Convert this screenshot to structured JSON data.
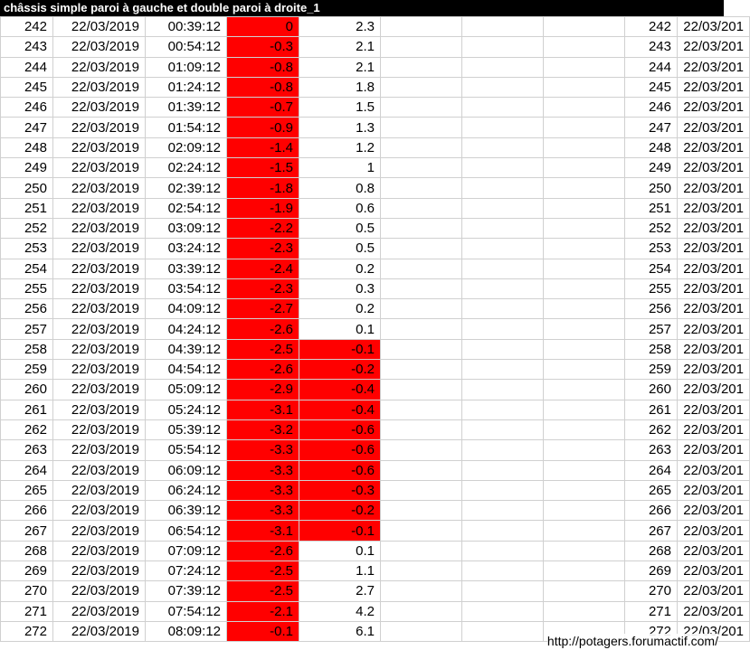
{
  "title": "châssis simple paroi à gauche et double paroi à droite_1",
  "footer_url": "http://potagers.forumactif.com/",
  "colors": {
    "highlight": "#ff0000",
    "border": "#d0d0d0",
    "title_bg": "#000000",
    "title_fg": "#ffffff"
  },
  "negative_threshold": 0,
  "rows": [
    {
      "idx": 242,
      "date": "22/03/2019",
      "time": "00:39:12",
      "v1": 0,
      "v2": 2.3,
      "idx2": 242,
      "date2": "22/03/201"
    },
    {
      "idx": 243,
      "date": "22/03/2019",
      "time": "00:54:12",
      "v1": -0.3,
      "v2": 2.1,
      "idx2": 243,
      "date2": "22/03/201"
    },
    {
      "idx": 244,
      "date": "22/03/2019",
      "time": "01:09:12",
      "v1": -0.8,
      "v2": 2.1,
      "idx2": 244,
      "date2": "22/03/201"
    },
    {
      "idx": 245,
      "date": "22/03/2019",
      "time": "01:24:12",
      "v1": -0.8,
      "v2": 1.8,
      "idx2": 245,
      "date2": "22/03/201"
    },
    {
      "idx": 246,
      "date": "22/03/2019",
      "time": "01:39:12",
      "v1": -0.7,
      "v2": 1.5,
      "idx2": 246,
      "date2": "22/03/201"
    },
    {
      "idx": 247,
      "date": "22/03/2019",
      "time": "01:54:12",
      "v1": -0.9,
      "v2": 1.3,
      "idx2": 247,
      "date2": "22/03/201"
    },
    {
      "idx": 248,
      "date": "22/03/2019",
      "time": "02:09:12",
      "v1": -1.4,
      "v2": 1.2,
      "idx2": 248,
      "date2": "22/03/201"
    },
    {
      "idx": 249,
      "date": "22/03/2019",
      "time": "02:24:12",
      "v1": -1.5,
      "v2": 1,
      "idx2": 249,
      "date2": "22/03/201"
    },
    {
      "idx": 250,
      "date": "22/03/2019",
      "time": "02:39:12",
      "v1": -1.8,
      "v2": 0.8,
      "idx2": 250,
      "date2": "22/03/201"
    },
    {
      "idx": 251,
      "date": "22/03/2019",
      "time": "02:54:12",
      "v1": -1.9,
      "v2": 0.6,
      "idx2": 251,
      "date2": "22/03/201"
    },
    {
      "idx": 252,
      "date": "22/03/2019",
      "time": "03:09:12",
      "v1": -2.2,
      "v2": 0.5,
      "idx2": 252,
      "date2": "22/03/201"
    },
    {
      "idx": 253,
      "date": "22/03/2019",
      "time": "03:24:12",
      "v1": -2.3,
      "v2": 0.5,
      "idx2": 253,
      "date2": "22/03/201"
    },
    {
      "idx": 254,
      "date": "22/03/2019",
      "time": "03:39:12",
      "v1": -2.4,
      "v2": 0.2,
      "idx2": 254,
      "date2": "22/03/201"
    },
    {
      "idx": 255,
      "date": "22/03/2019",
      "time": "03:54:12",
      "v1": -2.3,
      "v2": 0.3,
      "idx2": 255,
      "date2": "22/03/201"
    },
    {
      "idx": 256,
      "date": "22/03/2019",
      "time": "04:09:12",
      "v1": -2.7,
      "v2": 0.2,
      "idx2": 256,
      "date2": "22/03/201"
    },
    {
      "idx": 257,
      "date": "22/03/2019",
      "time": "04:24:12",
      "v1": -2.6,
      "v2": 0.1,
      "idx2": 257,
      "date2": "22/03/201"
    },
    {
      "idx": 258,
      "date": "22/03/2019",
      "time": "04:39:12",
      "v1": -2.5,
      "v2": -0.1,
      "idx2": 258,
      "date2": "22/03/201"
    },
    {
      "idx": 259,
      "date": "22/03/2019",
      "time": "04:54:12",
      "v1": -2.6,
      "v2": -0.2,
      "idx2": 259,
      "date2": "22/03/201"
    },
    {
      "idx": 260,
      "date": "22/03/2019",
      "time": "05:09:12",
      "v1": -2.9,
      "v2": -0.4,
      "idx2": 260,
      "date2": "22/03/201"
    },
    {
      "idx": 261,
      "date": "22/03/2019",
      "time": "05:24:12",
      "v1": -3.1,
      "v2": -0.4,
      "idx2": 261,
      "date2": "22/03/201"
    },
    {
      "idx": 262,
      "date": "22/03/2019",
      "time": "05:39:12",
      "v1": -3.2,
      "v2": -0.6,
      "idx2": 262,
      "date2": "22/03/201"
    },
    {
      "idx": 263,
      "date": "22/03/2019",
      "time": "05:54:12",
      "v1": -3.3,
      "v2": -0.6,
      "idx2": 263,
      "date2": "22/03/201"
    },
    {
      "idx": 264,
      "date": "22/03/2019",
      "time": "06:09:12",
      "v1": -3.3,
      "v2": -0.6,
      "idx2": 264,
      "date2": "22/03/201"
    },
    {
      "idx": 265,
      "date": "22/03/2019",
      "time": "06:24:12",
      "v1": -3.3,
      "v2": -0.3,
      "idx2": 265,
      "date2": "22/03/201"
    },
    {
      "idx": 266,
      "date": "22/03/2019",
      "time": "06:39:12",
      "v1": -3.3,
      "v2": -0.2,
      "idx2": 266,
      "date2": "22/03/201"
    },
    {
      "idx": 267,
      "date": "22/03/2019",
      "time": "06:54:12",
      "v1": -3.1,
      "v2": -0.1,
      "idx2": 267,
      "date2": "22/03/201"
    },
    {
      "idx": 268,
      "date": "22/03/2019",
      "time": "07:09:12",
      "v1": -2.6,
      "v2": 0.1,
      "idx2": 268,
      "date2": "22/03/201"
    },
    {
      "idx": 269,
      "date": "22/03/2019",
      "time": "07:24:12",
      "v1": -2.5,
      "v2": 1.1,
      "idx2": 269,
      "date2": "22/03/201"
    },
    {
      "idx": 270,
      "date": "22/03/2019",
      "time": "07:39:12",
      "v1": -2.5,
      "v2": 2.7,
      "idx2": 270,
      "date2": "22/03/201"
    },
    {
      "idx": 271,
      "date": "22/03/2019",
      "time": "07:54:12",
      "v1": -2.1,
      "v2": 4.2,
      "idx2": 271,
      "date2": "22/03/201"
    },
    {
      "idx": 272,
      "date": "22/03/2019",
      "time": "08:09:12",
      "v1": -0.1,
      "v2": 6.1,
      "idx2": 272,
      "date2": "22/03/201"
    }
  ]
}
